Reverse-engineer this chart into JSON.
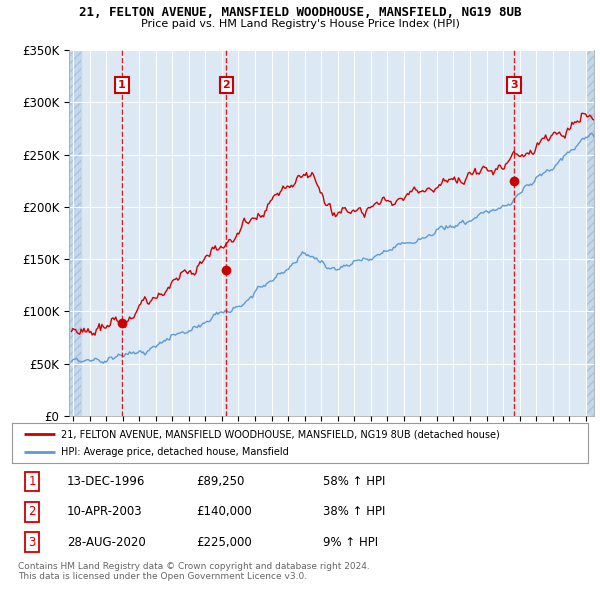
{
  "title_line1": "21, FELTON AVENUE, MANSFIELD WOODHOUSE, MANSFIELD, NG19 8UB",
  "title_line2": "Price paid vs. HM Land Registry's House Price Index (HPI)",
  "ylim": [
    0,
    350000
  ],
  "yticks": [
    0,
    50000,
    100000,
    150000,
    200000,
    250000,
    300000,
    350000
  ],
  "ytick_labels": [
    "£0",
    "£50K",
    "£100K",
    "£150K",
    "£200K",
    "£250K",
    "£300K",
    "£350K"
  ],
  "xlim_start": 1993.75,
  "xlim_end": 2025.5,
  "hatch_left_end": 1994.5,
  "hatch_right_start": 2025.08,
  "sale_dates": [
    1996.95,
    2003.27,
    2020.66
  ],
  "sale_prices": [
    89250,
    140000,
    225000
  ],
  "sale_labels": [
    "1",
    "2",
    "3"
  ],
  "red_line_color": "#cc0000",
  "blue_line_color": "#5b9bd5",
  "dot_color": "#cc0000",
  "sale_label_color": "#cc0000",
  "vline_color": "#cc0000",
  "chart_bg_color": "#dce9f5",
  "hatch_color": "#c5d8ea",
  "grid_color": "#ffffff",
  "bg_color": "#ffffff",
  "legend_line1": "21, FELTON AVENUE, MANSFIELD WOODHOUSE, MANSFIELD, NG19 8UB (detached house)",
  "legend_line2": "HPI: Average price, detached house, Mansfield",
  "table_rows": [
    [
      "1",
      "13-DEC-1996",
      "£89,250",
      "58% ↑ HPI"
    ],
    [
      "2",
      "10-APR-2003",
      "£140,000",
      "38% ↑ HPI"
    ],
    [
      "3",
      "28-AUG-2020",
      "£225,000",
      "9% ↑ HPI"
    ]
  ],
  "footer_text": "Contains HM Land Registry data © Crown copyright and database right 2024.\nThis data is licensed under the Open Government Licence v3.0.",
  "annotation_box_color": "#cc0000"
}
